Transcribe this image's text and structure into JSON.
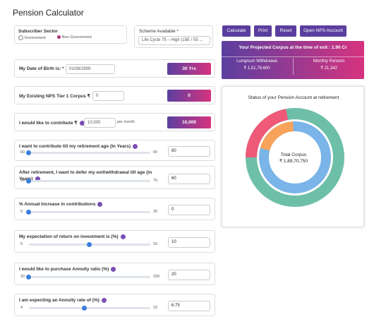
{
  "title": "Pension Calculator",
  "subscriber_sector": {
    "label": "Subscriber Sector",
    "options": [
      "Government",
      "Non-Government"
    ]
  },
  "scheme": {
    "label": "Scheme Available *",
    "selected": "Life Cycle 75 – High (15E / 55 ..."
  },
  "buttons": [
    "Calculate",
    "Print",
    "Reset",
    "Open NPS Account"
  ],
  "projection": {
    "headline": "Your Projected Corpus at the time of exit : 1.90 Cr",
    "lumpsum": {
      "label": "Lumpsum Withdrawal",
      "value": "₹ 1,51,76,600"
    },
    "pension": {
      "label": "Monthly Pension",
      "value": "₹ 21,342"
    }
  },
  "inputs": [
    {
      "label": "My Date of Birth is: *",
      "value": "01/08/1999",
      "badge": "30 Yrs"
    },
    {
      "label": "My Existing NPS Tier 1 Corpus ₹",
      "value": "0",
      "badge": "0"
    },
    {
      "label": "I would like to contribute ₹",
      "value": "10,000",
      "suffix": "per month",
      "badge": "10,000"
    }
  ],
  "sliders": [
    {
      "label": "I want to contribute till my retirement age (In Years)",
      "min": "60",
      "max": "65",
      "value": "60"
    },
    {
      "label": "After retirement, I want to defer my exit/withdrawal till age (in Years)",
      "min": "60",
      "max": "75",
      "value": "60"
    },
    {
      "label": "% Annual Increase in contributions",
      "min": "0",
      "max": "20",
      "value": "0"
    },
    {
      "label": "My expectation of return on investment is (%)",
      "min": "5",
      "max": "15",
      "value": "10"
    },
    {
      "label": "I would like to purchase Annuity ratio (%)",
      "min": "20",
      "max": "100",
      "value": "20"
    },
    {
      "label": "I am expecting an Annuity rate of (%)",
      "min": "4",
      "max": "10",
      "value": "6.75"
    }
  ],
  "chart": {
    "title": "Status of your Pension Account at retirement",
    "center_label": "Total Corpus",
    "center_value": "₹ 1,89,70,750"
  }
}
